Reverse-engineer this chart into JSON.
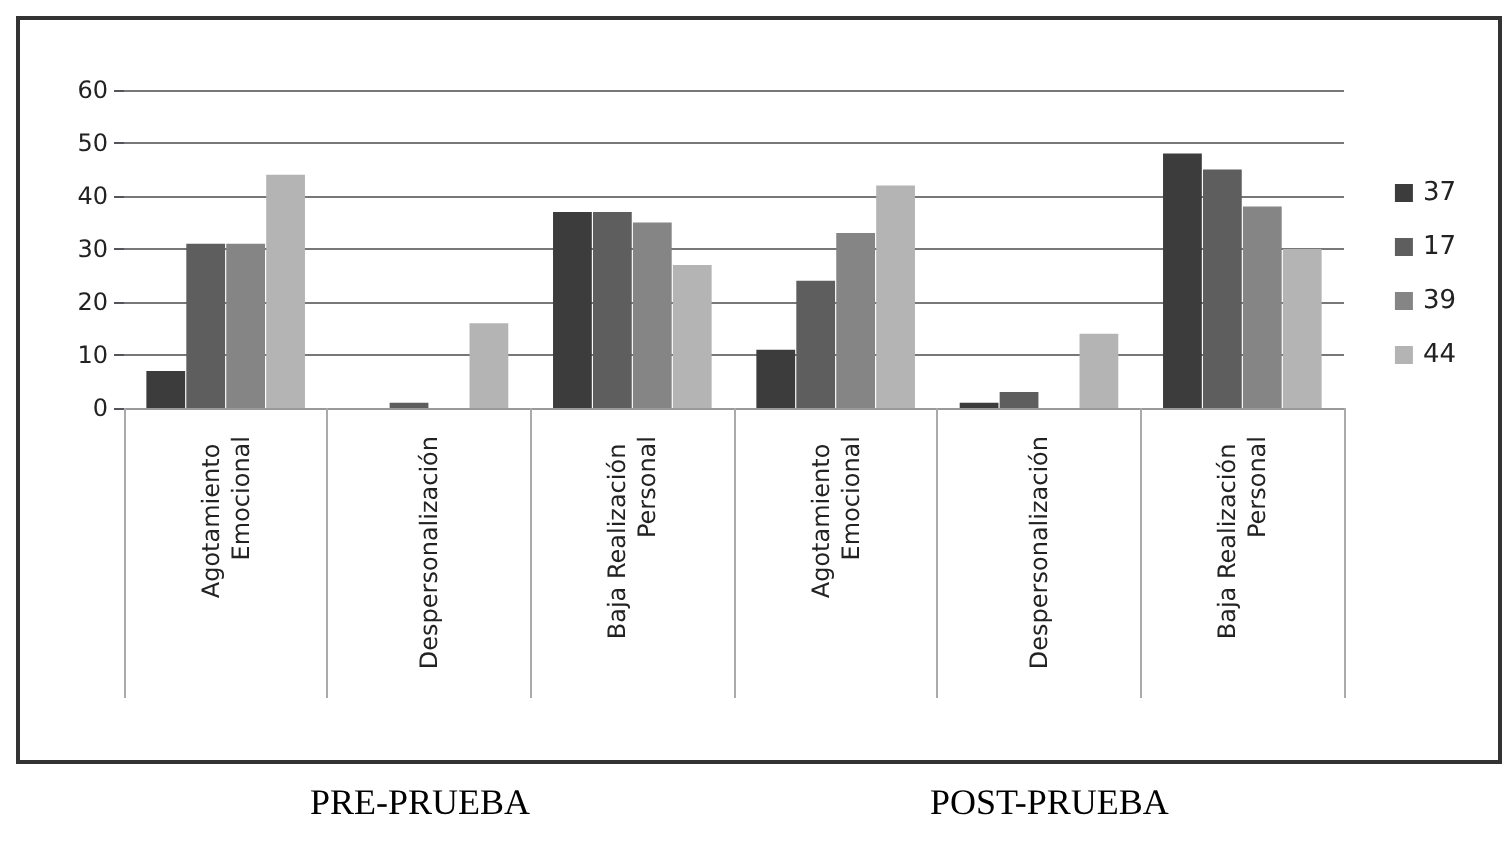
{
  "chart_data": {
    "type": "bar",
    "categories": [
      "Agotamiento Emocional",
      "Despersonalización",
      "Baja Realización Personal",
      "Agotamiento Emocional",
      "Despersonalización",
      "Baja Realización Personal"
    ],
    "series": [
      {
        "name": "37",
        "color": "#3c3c3c",
        "values": [
          7,
          0,
          37,
          11,
          1,
          48
        ]
      },
      {
        "name": "17",
        "color": "#5e5e5e",
        "values": [
          31,
          1,
          37,
          24,
          3,
          45
        ]
      },
      {
        "name": "39",
        "color": "#858585",
        "values": [
          31,
          0,
          35,
          33,
          0,
          38
        ]
      },
      {
        "name": "44",
        "color": "#b4b4b4",
        "values": [
          44,
          16,
          27,
          42,
          14,
          30
        ]
      }
    ],
    "ylim": [
      0,
      60
    ],
    "yticks": [
      0,
      10,
      20,
      30,
      40,
      50,
      60
    ],
    "grid": "y",
    "legend": "right",
    "annotations": [
      "PRE-PRUEBA",
      "POST-PRUEBA"
    ]
  }
}
